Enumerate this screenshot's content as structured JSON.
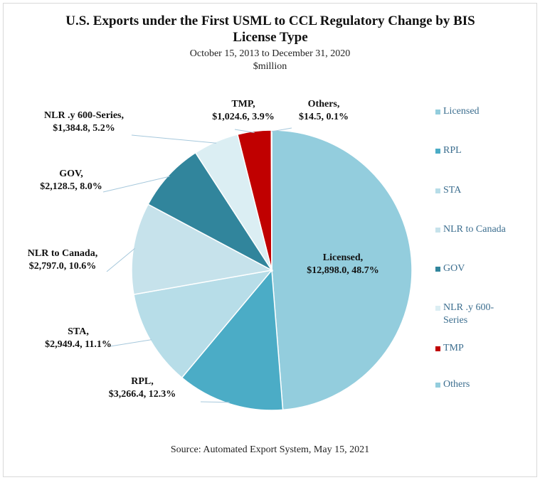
{
  "chart_data": {
    "type": "pie",
    "title": "U.S. Exports under the First USML to CCL Regulatory Change by BIS License Type",
    "subtitle": "October 15, 2013 to December 31, 2020",
    "unit_label": "$million",
    "source": "Source: Automated Export System, May 15, 2021",
    "categories": [
      "Licensed",
      "RPL",
      "STA",
      "NLR to Canada",
      "GOV",
      "NLR .y 600-Series",
      "TMP",
      "Others"
    ],
    "values": [
      12898.0,
      3266.4,
      2949.4,
      2797.0,
      2128.5,
      1384.8,
      1024.6,
      14.5
    ],
    "value_labels": [
      "Licensed,\n$12,898.0, 48.7%",
      "RPL,\n$3,266.4, 12.3%",
      "STA,\n$2,949.4, 11.1%",
      "NLR to Canada,\n$2,797.0, 10.6%",
      "GOV,\n$2,128.5, 8.0%",
      "NLR .y 600-Series,\n$1,384.8, 5.2%",
      "TMP,\n$1,024.6, 3.9%",
      "Others,\n$14.5, 0.1%"
    ],
    "colors": [
      "#93cddd",
      "#4bacc6",
      "#b7dde8",
      "#c6e2eb",
      "#31859c",
      "#dbeef3",
      "#c00000",
      "#93cddd"
    ],
    "legend": "right"
  }
}
